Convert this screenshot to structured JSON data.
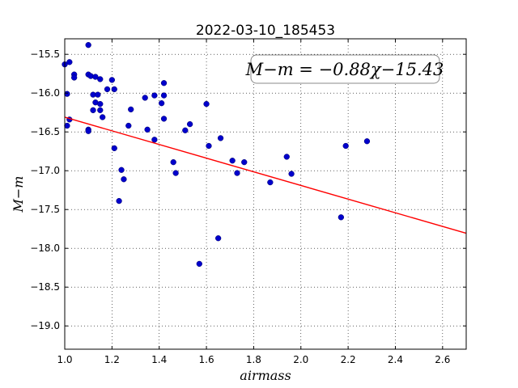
{
  "chart_data": {
    "type": "scatter",
    "title": "2022-03-10_185453",
    "xlabel": "airmass",
    "ylabel": "M−m",
    "xlim": [
      1.0,
      2.7
    ],
    "ylim": [
      -19.3,
      -15.3
    ],
    "y_inverted": true,
    "grid": true,
    "grid_style": "dotted",
    "xticks": [
      "1.0",
      "1.2",
      "1.4",
      "1.6",
      "1.8",
      "2.0",
      "2.2",
      "2.4",
      "2.6"
    ],
    "yticks": [
      "−15.5",
      "−16.0",
      "−16.5",
      "−17.0",
      "−17.5",
      "−18.0",
      "−18.5",
      "−19.0"
    ],
    "annotation": "M−m = −0.88χ−15.43",
    "fit_line": {
      "slope": -0.88,
      "intercept": -15.43,
      "color": "#ff0000"
    },
    "point_color": "#0000cc",
    "points": [
      [
        1.0,
        -15.63
      ],
      [
        1.01,
        -16.01
      ],
      [
        1.01,
        -16.42
      ],
      [
        1.02,
        -16.34
      ],
      [
        1.02,
        -15.6
      ],
      [
        1.04,
        -15.76
      ],
      [
        1.04,
        -15.8
      ],
      [
        1.1,
        -15.76
      ],
      [
        1.1,
        -16.47
      ],
      [
        1.1,
        -16.49
      ],
      [
        1.1,
        -15.38
      ],
      [
        1.11,
        -15.78
      ],
      [
        1.12,
        -16.02
      ],
      [
        1.12,
        -16.22
      ],
      [
        1.13,
        -16.12
      ],
      [
        1.13,
        -15.79
      ],
      [
        1.14,
        -16.02
      ],
      [
        1.15,
        -15.82
      ],
      [
        1.15,
        -16.22
      ],
      [
        1.15,
        -16.14
      ],
      [
        1.16,
        -16.31
      ],
      [
        1.18,
        -15.95
      ],
      [
        1.2,
        -15.83
      ],
      [
        1.21,
        -16.71
      ],
      [
        1.21,
        -15.95
      ],
      [
        1.23,
        -17.39
      ],
      [
        1.24,
        -16.99
      ],
      [
        1.25,
        -17.11
      ],
      [
        1.27,
        -16.42
      ],
      [
        1.28,
        -16.21
      ],
      [
        1.34,
        -16.06
      ],
      [
        1.35,
        -16.47
      ],
      [
        1.38,
        -16.6
      ],
      [
        1.38,
        -16.03
      ],
      [
        1.41,
        -16.13
      ],
      [
        1.42,
        -15.87
      ],
      [
        1.42,
        -16.03
      ],
      [
        1.42,
        -16.33
      ],
      [
        1.46,
        -16.89
      ],
      [
        1.47,
        -17.03
      ],
      [
        1.51,
        -16.48
      ],
      [
        1.53,
        -16.4
      ],
      [
        1.57,
        -18.2
      ],
      [
        1.6,
        -16.14
      ],
      [
        1.61,
        -16.68
      ],
      [
        1.65,
        -17.87
      ],
      [
        1.66,
        -16.58
      ],
      [
        1.71,
        -16.87
      ],
      [
        1.73,
        -17.03
      ],
      [
        1.76,
        -16.89
      ],
      [
        1.87,
        -17.15
      ],
      [
        1.94,
        -16.82
      ],
      [
        1.96,
        -17.04
      ],
      [
        2.17,
        -17.6
      ],
      [
        2.19,
        -16.68
      ],
      [
        2.28,
        -16.62
      ]
    ]
  }
}
